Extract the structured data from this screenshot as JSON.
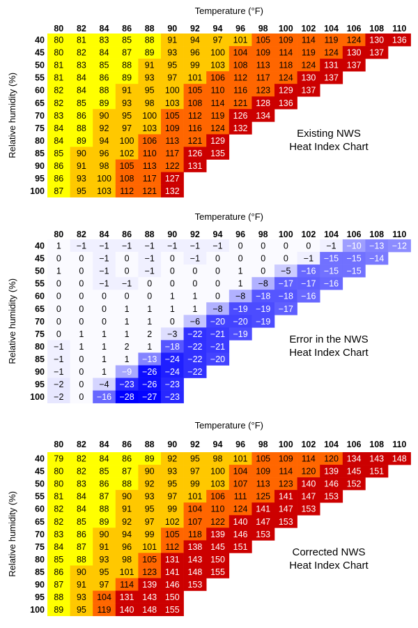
{
  "chart_data": [
    {
      "type": "heatmap",
      "title": "Existing NWS Heat Index Chart",
      "title_lines": [
        "Existing NWS",
        "Heat Index Chart"
      ],
      "xlabel": "Temperature (°F)",
      "ylabel": "Relative humidity (%)",
      "x": [
        80,
        82,
        84,
        86,
        88,
        90,
        92,
        94,
        96,
        98,
        100,
        102,
        104,
        106,
        108,
        110
      ],
      "y": [
        40,
        45,
        50,
        55,
        60,
        65,
        70,
        75,
        80,
        85,
        90,
        95,
        100
      ],
      "colorscale": {
        "caution": "#ffff00",
        "extreme_caution": "#ffc800",
        "danger": "#ff6600",
        "extreme_danger": "#cc0000"
      },
      "values": [
        [
          80,
          81,
          83,
          85,
          88,
          91,
          94,
          97,
          101,
          105,
          109,
          114,
          119,
          124,
          130,
          136
        ],
        [
          80,
          82,
          84,
          87,
          89,
          93,
          96,
          100,
          104,
          109,
          114,
          119,
          124,
          130,
          137
        ],
        [
          81,
          83,
          85,
          88,
          91,
          95,
          99,
          103,
          108,
          113,
          118,
          124,
          131,
          137
        ],
        [
          81,
          84,
          86,
          89,
          93,
          97,
          101,
          106,
          112,
          117,
          124,
          130,
          137
        ],
        [
          82,
          84,
          88,
          91,
          95,
          100,
          105,
          110,
          116,
          123,
          129,
          137
        ],
        [
          82,
          85,
          89,
          93,
          98,
          103,
          108,
          114,
          121,
          128,
          136
        ],
        [
          83,
          86,
          90,
          95,
          100,
          105,
          112,
          119,
          126,
          134
        ],
        [
          84,
          88,
          92,
          97,
          103,
          109,
          116,
          124,
          132
        ],
        [
          84,
          89,
          94,
          100,
          106,
          113,
          121,
          129
        ],
        [
          85,
          90,
          96,
          102,
          110,
          117,
          126,
          135
        ],
        [
          86,
          91,
          98,
          105,
          113,
          122,
          131
        ],
        [
          86,
          93,
          100,
          108,
          117,
          127
        ],
        [
          87,
          95,
          103,
          112,
          121,
          132
        ]
      ]
    },
    {
      "type": "heatmap",
      "title": "Error in the NWS Heat Index Chart",
      "title_lines": [
        "Error in the NWS",
        "Heat Index Chart"
      ],
      "xlabel": "Temperature (°F)",
      "ylabel": "Relative humidity (%)",
      "x": [
        80,
        82,
        84,
        86,
        88,
        90,
        92,
        94,
        96,
        98,
        100,
        102,
        104,
        106,
        108,
        110
      ],
      "y": [
        40,
        45,
        50,
        55,
        60,
        65,
        70,
        75,
        80,
        85,
        90,
        95,
        100
      ],
      "colorscale": {
        "zero": "#ffffff",
        "max_negative": "#0000ff"
      },
      "values": [
        [
          1,
          -1,
          -1,
          -1,
          -1,
          -1,
          -1,
          -1,
          0,
          0,
          0,
          0,
          -1,
          -10,
          -13,
          -12
        ],
        [
          0,
          0,
          -1,
          0,
          -1,
          0,
          -1,
          0,
          0,
          0,
          0,
          -1,
          -15,
          -15,
          -14
        ],
        [
          1,
          0,
          -1,
          0,
          -1,
          0,
          0,
          0,
          1,
          0,
          -5,
          -16,
          -15,
          -15
        ],
        [
          0,
          0,
          -1,
          -1,
          0,
          0,
          0,
          0,
          1,
          -8,
          -17,
          -17,
          -16
        ],
        [
          0,
          0,
          0,
          0,
          0,
          1,
          1,
          0,
          -8,
          -18,
          -18,
          -16
        ],
        [
          0,
          0,
          0,
          1,
          1,
          1,
          1,
          -8,
          -19,
          -19,
          -17
        ],
        [
          0,
          0,
          0,
          1,
          1,
          0,
          -6,
          -20,
          -20,
          -19
        ],
        [
          0,
          1,
          1,
          1,
          2,
          -3,
          -22,
          -21,
          -19
        ],
        [
          -1,
          1,
          1,
          2,
          1,
          -18,
          -22,
          -21
        ],
        [
          -1,
          0,
          1,
          1,
          -13,
          -24,
          -22,
          -20
        ],
        [
          -1,
          0,
          1,
          -9,
          -26,
          -24,
          -22
        ],
        [
          -2,
          0,
          -4,
          -23,
          -26,
          -23
        ],
        [
          -2,
          0,
          -16,
          -28,
          -27,
          -23
        ]
      ]
    },
    {
      "type": "heatmap",
      "title": "Corrected NWS Heat Index Chart",
      "title_lines": [
        "Corrected NWS",
        "Heat Index Chart"
      ],
      "xlabel": "Temperature (°F)",
      "ylabel": "Relative humidity (%)",
      "x": [
        80,
        82,
        84,
        86,
        88,
        90,
        92,
        94,
        96,
        98,
        100,
        102,
        104,
        106,
        108,
        110
      ],
      "y": [
        40,
        45,
        50,
        55,
        60,
        65,
        70,
        75,
        80,
        85,
        90,
        95,
        100
      ],
      "colorscale": {
        "caution": "#ffff00",
        "extreme_caution": "#ffc800",
        "danger": "#ff6600",
        "extreme_danger": "#cc0000"
      },
      "values": [
        [
          79,
          82,
          84,
          86,
          89,
          92,
          95,
          98,
          101,
          105,
          109,
          114,
          120,
          134,
          143,
          148
        ],
        [
          80,
          82,
          85,
          87,
          90,
          93,
          97,
          100,
          104,
          109,
          114,
          120,
          139,
          145,
          151
        ],
        [
          80,
          83,
          86,
          88,
          92,
          95,
          99,
          103,
          107,
          113,
          123,
          140,
          146,
          152
        ],
        [
          81,
          84,
          87,
          90,
          93,
          97,
          101,
          106,
          111,
          125,
          141,
          147,
          153
        ],
        [
          82,
          84,
          88,
          91,
          95,
          99,
          104,
          110,
          124,
          141,
          147,
          153
        ],
        [
          82,
          85,
          89,
          92,
          97,
          102,
          107,
          122,
          140,
          147,
          153
        ],
        [
          83,
          86,
          90,
          94,
          99,
          105,
          118,
          139,
          146,
          153
        ],
        [
          84,
          87,
          91,
          96,
          101,
          112,
          138,
          145,
          151
        ],
        [
          85,
          88,
          93,
          98,
          105,
          131,
          143,
          150
        ],
        [
          86,
          90,
          95,
          101,
          123,
          141,
          148,
          155
        ],
        [
          87,
          91,
          97,
          114,
          139,
          146,
          153
        ],
        [
          88,
          93,
          104,
          131,
          143,
          150
        ],
        [
          89,
          95,
          119,
          140,
          148,
          155
        ]
      ]
    }
  ]
}
